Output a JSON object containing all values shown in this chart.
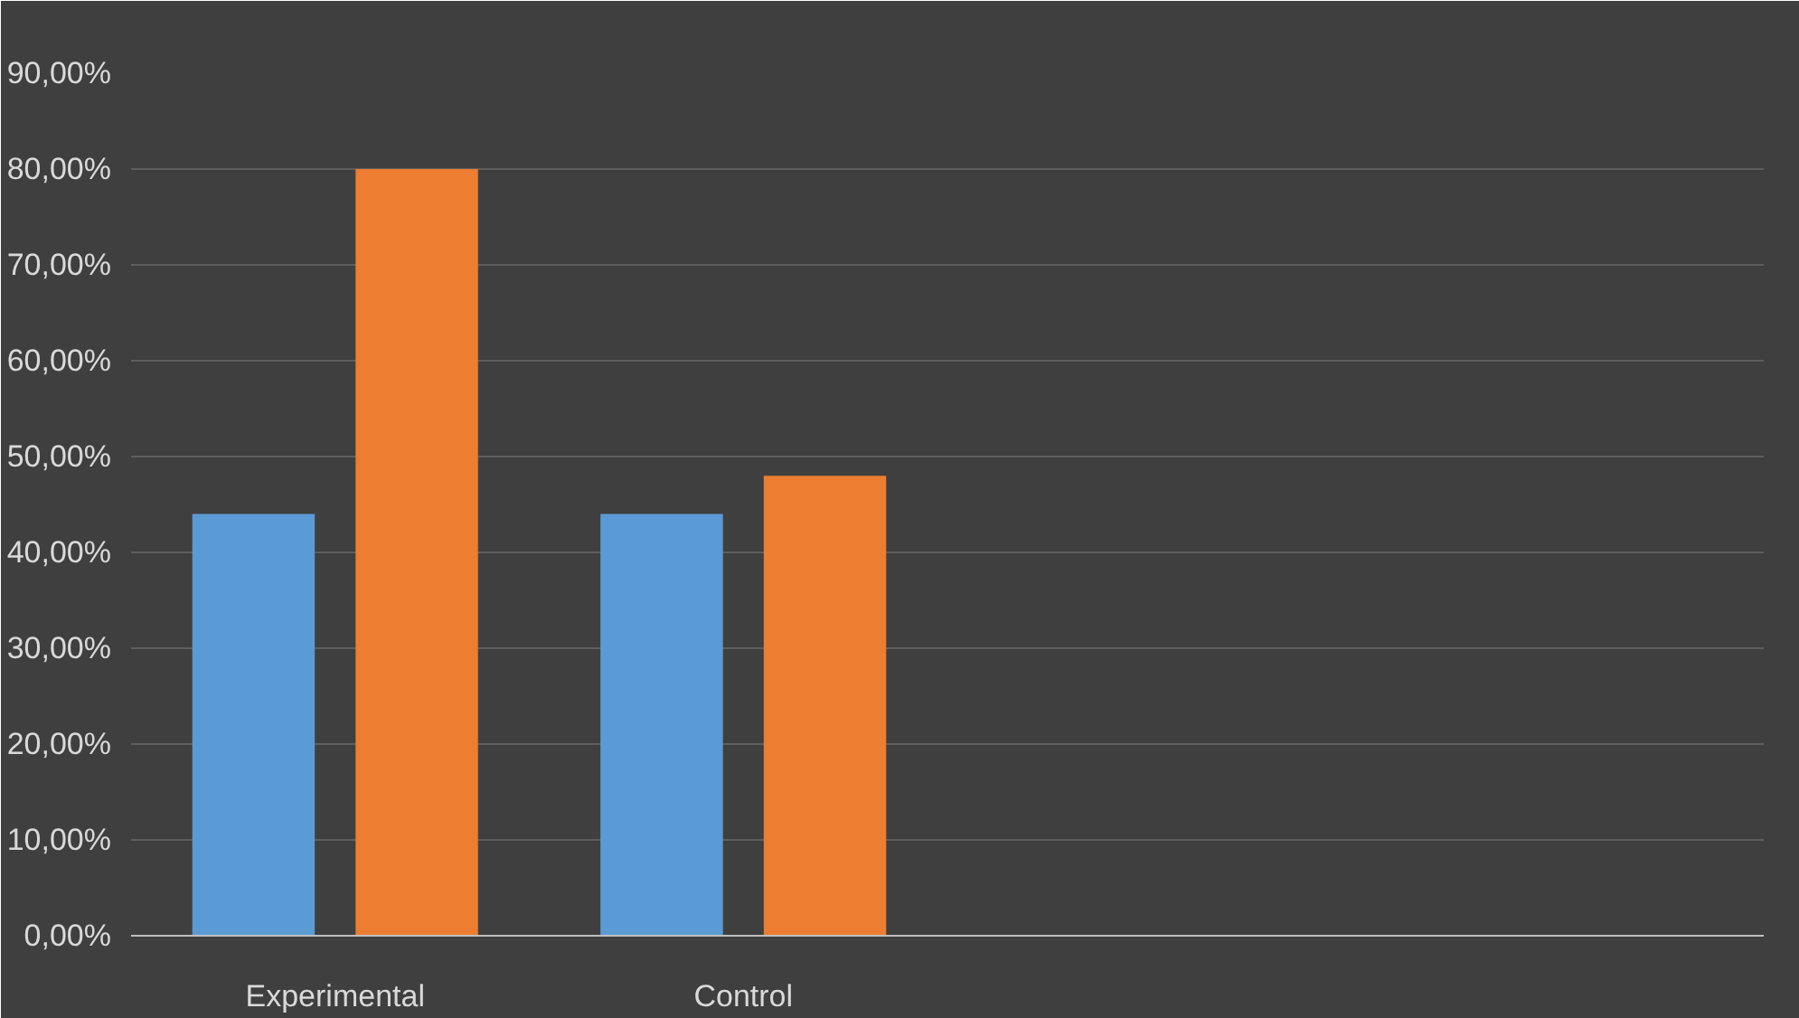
{
  "chart_data": {
    "type": "bar",
    "categories": [
      "Experimental",
      "Control",
      null,
      null
    ],
    "series": [
      {
        "color": "#5b9bd5",
        "values": [
          44,
          44,
          null,
          null
        ]
      },
      {
        "color": "#ed7d31",
        "values": [
          80,
          48,
          null,
          null
        ]
      }
    ],
    "ylim": [
      0,
      90
    ],
    "yticks": [
      {
        "value": 0,
        "label": "0,00%"
      },
      {
        "value": 10,
        "label": "10,00%"
      },
      {
        "value": 20,
        "label": "20,00%"
      },
      {
        "value": 30,
        "label": "30,00%"
      },
      {
        "value": 40,
        "label": "40,00%"
      },
      {
        "value": 50,
        "label": "50,00%"
      },
      {
        "value": 60,
        "label": "60,00%"
      },
      {
        "value": 70,
        "label": "70,00%"
      },
      {
        "value": 80,
        "label": "80,00%"
      },
      {
        "value": 90,
        "label": "90,00%"
      }
    ],
    "grid": "y"
  }
}
